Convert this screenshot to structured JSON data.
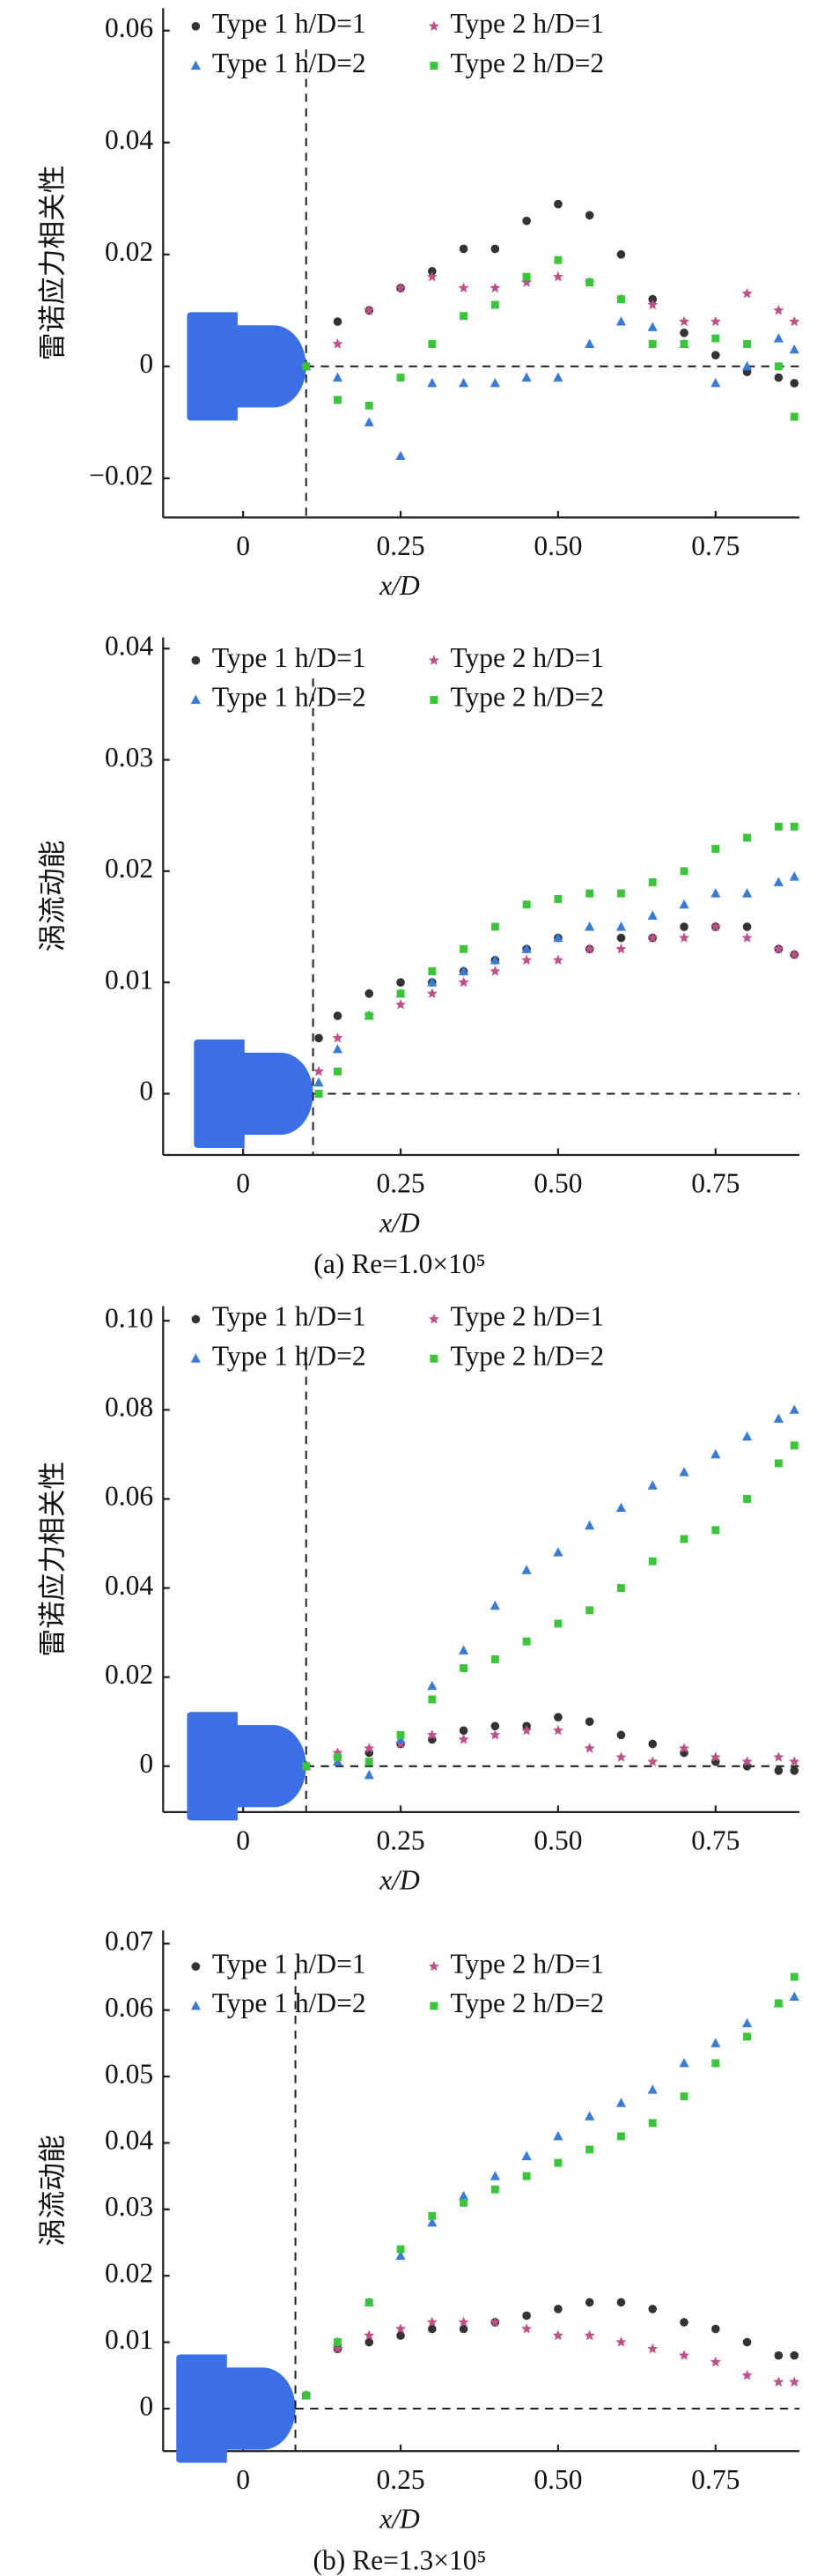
{
  "chart_data": [
    {
      "type": "scatter",
      "ylabel": "雷诺应力相关性",
      "xlabel": "x/D",
      "xlim": [
        -0.127,
        0.883
      ],
      "ylim": [
        -0.027,
        0.064
      ],
      "xticks": [
        0,
        0.25,
        {
          "value": 0.5,
          "label": "0.50"
        },
        0.75
      ],
      "yticks": [
        0.06,
        0.04,
        0.02,
        0,
        {
          "value": -0.02,
          "label": "−0.02"
        }
      ],
      "vline": 0.1,
      "hline": 0,
      "x": [
        0.1,
        0.15,
        0.2,
        0.25,
        0.3,
        0.35,
        0.4,
        0.45,
        0.5,
        0.55,
        0.6,
        0.65,
        0.7,
        0.75,
        0.8,
        0.85,
        0.875
      ],
      "series": [
        {
          "name": "Type 1 h/D=1",
          "color": "#333333",
          "marker": "circle",
          "values": [
            0,
            0.008,
            0.01,
            0.014,
            0.017,
            0.021,
            0.021,
            0.026,
            0.029,
            0.027,
            0.02,
            0.012,
            0.006,
            0.002,
            -0.001,
            -0.002,
            -0.003
          ]
        },
        {
          "name": "Type 2 h/D=1",
          "color": "#c0508a",
          "marker": "star",
          "values": [
            0,
            0.004,
            0.01,
            0.014,
            0.016,
            0.014,
            0.014,
            0.015,
            0.016,
            0.015,
            0.012,
            0.011,
            0.008,
            0.008,
            0.013,
            0.01,
            0.008
          ]
        },
        {
          "name": "Type 1 h/D=2",
          "color": "#3a7bd5",
          "marker": "triangle",
          "values": [
            0,
            -0.002,
            -0.01,
            -0.016,
            -0.003,
            -0.003,
            -0.003,
            -0.002,
            -0.002,
            0.004,
            0.008,
            0.007,
            0.004,
            -0.003,
            0,
            0.005,
            0.003
          ]
        },
        {
          "name": "Type 2 h/D=2",
          "color": "#3cc43c",
          "marker": "square",
          "values": [
            0,
            -0.006,
            -0.007,
            -0.002,
            0.004,
            0.009,
            0.011,
            0.016,
            0.019,
            0.015,
            0.012,
            0.004,
            0.004,
            0.005,
            0.004,
            0,
            -0.009
          ]
        }
      ]
    },
    {
      "type": "scatter",
      "ylabel": "涡流动能",
      "xlabel": "x/D",
      "caption": "(a) Re=1.0×10⁵",
      "xlim": [
        -0.127,
        0.883
      ],
      "ylim": [
        -0.0055,
        0.041
      ],
      "xticks": [
        0,
        0.25,
        {
          "value": 0.5,
          "label": "0.50"
        },
        0.75
      ],
      "yticks": [
        0.04,
        0.03,
        0.02,
        0.01,
        0
      ],
      "vline": 0.111,
      "hline": 0,
      "x": [
        0.12,
        0.15,
        0.2,
        0.25,
        0.3,
        0.35,
        0.4,
        0.45,
        0.5,
        0.55,
        0.6,
        0.65,
        0.7,
        0.75,
        0.8,
        0.85,
        0.875
      ],
      "series": [
        {
          "name": "Type 1 h/D=1",
          "color": "#333333",
          "marker": "circle",
          "values": [
            0.005,
            0.007,
            0.009,
            0.01,
            0.01,
            0.011,
            0.012,
            0.013,
            0.014,
            0.013,
            0.014,
            0.014,
            0.015,
            0.015,
            0.015,
            0.013,
            0.0125
          ]
        },
        {
          "name": "Type 2 h/D=1",
          "color": "#c0508a",
          "marker": "star",
          "values": [
            0.002,
            0.005,
            0.007,
            0.008,
            0.009,
            0.01,
            0.011,
            0.012,
            0.012,
            0.013,
            0.013,
            0.014,
            0.014,
            0.015,
            0.014,
            0.013,
            0.0125
          ]
        },
        {
          "name": "Type 1 h/D=2",
          "color": "#3a7bd5",
          "marker": "triangle",
          "values": [
            0.001,
            0.004,
            0.007,
            0.009,
            0.01,
            0.011,
            0.012,
            0.013,
            0.014,
            0.015,
            0.015,
            0.016,
            0.017,
            0.018,
            0.018,
            0.019,
            0.0195
          ]
        },
        {
          "name": "Type 2 h/D=2",
          "color": "#3cc43c",
          "marker": "square",
          "values": [
            0,
            0.002,
            0.007,
            0.009,
            0.011,
            0.013,
            0.015,
            0.017,
            0.0175,
            0.018,
            0.018,
            0.019,
            0.02,
            0.022,
            0.023,
            0.024,
            0.024
          ]
        }
      ]
    },
    {
      "type": "scatter",
      "ylabel": "雷诺应力相关性",
      "xlabel": "x/D",
      "xlim": [
        -0.127,
        0.883
      ],
      "ylim": [
        -0.0103,
        0.1033
      ],
      "xticks": [
        0,
        0.25,
        {
          "value": 0.5,
          "label": "0.50"
        },
        0.75
      ],
      "yticks": [
        {
          "value": 0.1,
          "label": "0.10"
        },
        0.08,
        0.06,
        0.04,
        0.02,
        0
      ],
      "vline": 0.1,
      "hline": 0,
      "x": [
        0.1,
        0.15,
        0.2,
        0.25,
        0.3,
        0.35,
        0.4,
        0.45,
        0.5,
        0.55,
        0.6,
        0.65,
        0.7,
        0.75,
        0.8,
        0.85,
        0.875
      ],
      "series": [
        {
          "name": "Type 1 h/D=1",
          "color": "#333333",
          "marker": "circle",
          "values": [
            0,
            0.002,
            0.003,
            0.005,
            0.006,
            0.008,
            0.009,
            0.009,
            0.011,
            0.01,
            0.007,
            0.005,
            0.003,
            0.001,
            0,
            -0.001,
            -0.001
          ]
        },
        {
          "name": "Type 2 h/D=1",
          "color": "#c0508a",
          "marker": "star",
          "values": [
            0,
            0.003,
            0.004,
            0.005,
            0.007,
            0.006,
            0.007,
            0.008,
            0.008,
            0.004,
            0.002,
            0.001,
            0.004,
            0.002,
            0.001,
            0.002,
            0.001
          ]
        },
        {
          "name": "Type 1 h/D=2",
          "color": "#3a7bd5",
          "marker": "triangle",
          "values": [
            0,
            0.001,
            -0.002,
            0.006,
            0.018,
            0.026,
            0.036,
            0.044,
            0.048,
            0.054,
            0.058,
            0.063,
            0.066,
            0.07,
            0.074,
            0.078,
            0.08
          ]
        },
        {
          "name": "Type 2 h/D=2",
          "color": "#3cc43c",
          "marker": "square",
          "values": [
            0,
            0.002,
            0.001,
            0.007,
            0.015,
            0.022,
            0.024,
            0.028,
            0.032,
            0.035,
            0.04,
            0.046,
            0.051,
            0.053,
            0.06,
            0.068,
            0.072
          ]
        }
      ]
    },
    {
      "type": "scatter",
      "ylabel": "涡流动能",
      "xlabel": "x/D",
      "caption": "(b) Re=1.3×10⁵",
      "xlim": [
        -0.127,
        0.883
      ],
      "ylim": [
        -0.0064,
        0.072
      ],
      "xticks": [
        0,
        0.25,
        {
          "value": 0.5,
          "label": "0.50"
        },
        0.75
      ],
      "yticks": [
        0.07,
        0.06,
        0.05,
        0.04,
        0.03,
        0.02,
        0.01,
        0
      ],
      "vline": 0.083,
      "hline": 0,
      "x": [
        0.1,
        0.15,
        0.2,
        0.25,
        0.3,
        0.35,
        0.4,
        0.45,
        0.5,
        0.55,
        0.6,
        0.65,
        0.7,
        0.75,
        0.8,
        0.85,
        0.875
      ],
      "series": [
        {
          "name": "Type 1 h/D=1",
          "color": "#333333",
          "marker": "circle",
          "values": [
            0.002,
            0.009,
            0.01,
            0.011,
            0.012,
            0.012,
            0.013,
            0.014,
            0.015,
            0.016,
            0.016,
            0.015,
            0.013,
            0.012,
            0.01,
            0.008,
            0.008
          ]
        },
        {
          "name": "Type 2 h/D=1",
          "color": "#c0508a",
          "marker": "star",
          "values": [
            0.002,
            0.009,
            0.011,
            0.012,
            0.013,
            0.013,
            0.013,
            0.012,
            0.011,
            0.011,
            0.01,
            0.009,
            0.008,
            0.007,
            0.005,
            0.004,
            0.004
          ]
        },
        {
          "name": "Type 1 h/D=2",
          "color": "#3a7bd5",
          "marker": "triangle",
          "values": [
            0.002,
            0.01,
            0.016,
            0.023,
            0.028,
            0.032,
            0.035,
            0.038,
            0.041,
            0.044,
            0.046,
            0.048,
            0.052,
            0.055,
            0.058,
            0.061,
            0.062
          ]
        },
        {
          "name": "Type 2 h/D=2",
          "color": "#3cc43c",
          "marker": "square",
          "values": [
            0.002,
            0.01,
            0.016,
            0.024,
            0.029,
            0.031,
            0.033,
            0.035,
            0.037,
            0.039,
            0.041,
            0.043,
            0.047,
            0.052,
            0.056,
            0.061,
            0.065
          ]
        }
      ]
    }
  ]
}
